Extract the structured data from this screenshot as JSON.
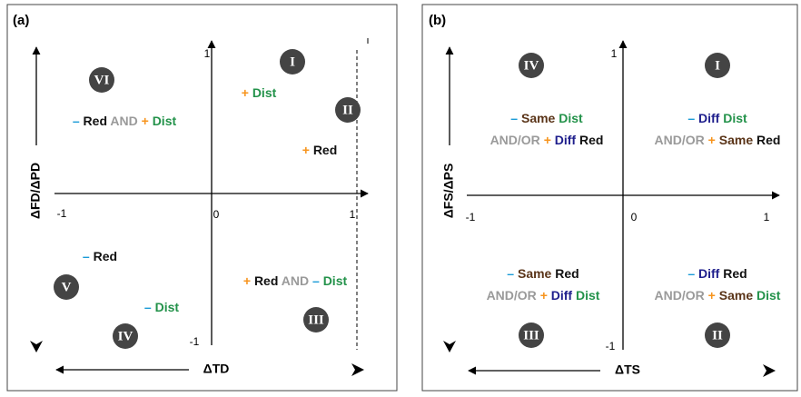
{
  "panels": [
    {
      "label": "(a)",
      "y_axis_label": "ΔFD/ΔPD",
      "x_axis_label": "ΔTD",
      "ticks": {
        "x_min": "-1",
        "x_zero": "0",
        "x_max": "1",
        "y_max": "1",
        "y_min": "-1"
      },
      "regions": [
        "VI",
        "I",
        "II",
        "V",
        "IV",
        "III"
      ],
      "annotations": [
        {
          "lines": [
            [
              {
                "text": "+",
                "color": "#f7941d"
              },
              {
                "text": "Dist",
                "color": "#23924a"
              }
            ]
          ]
        },
        {
          "lines": [
            [
              {
                "text": "–",
                "color": "#1a9bd7"
              },
              {
                "text": "Red",
                "color": "#111111"
              },
              {
                "text": "AND",
                "color": "#9a9a9a"
              },
              {
                "text": "+",
                "color": "#f7941d"
              },
              {
                "text": "Dist",
                "color": "#23924a"
              }
            ]
          ]
        },
        {
          "lines": [
            [
              {
                "text": "+",
                "color": "#f7941d"
              },
              {
                "text": "Red",
                "color": "#111111"
              }
            ]
          ]
        },
        {
          "lines": [
            [
              {
                "text": "–",
                "color": "#1a9bd7"
              },
              {
                "text": "Red",
                "color": "#111111"
              }
            ]
          ]
        },
        {
          "lines": [
            [
              {
                "text": "+",
                "color": "#f7941d"
              },
              {
                "text": "Red",
                "color": "#111111"
              },
              {
                "text": "AND",
                "color": "#9a9a9a"
              },
              {
                "text": "–",
                "color": "#1a9bd7"
              },
              {
                "text": "Dist",
                "color": "#23924a"
              }
            ]
          ]
        },
        {
          "lines": [
            [
              {
                "text": "–",
                "color": "#1a9bd7"
              },
              {
                "text": "Dist",
                "color": "#23924a"
              }
            ]
          ]
        }
      ]
    },
    {
      "label": "(b)",
      "y_axis_label": "ΔFS/ΔPS",
      "x_axis_label": "ΔTS",
      "ticks": {
        "x_min": "-1",
        "x_zero": "0",
        "x_max": "1",
        "y_max": "1",
        "y_min": "-1"
      },
      "regions": [
        "IV",
        "I",
        "III",
        "II"
      ],
      "annotations": [
        {
          "lines": [
            [
              {
                "text": "–",
                "color": "#1a9bd7"
              },
              {
                "text": "Same",
                "color": "#5a3418"
              },
              {
                "text": "Dist",
                "color": "#23924a"
              }
            ],
            [
              {
                "text": "AND/OR",
                "color": "#9a9a9a"
              },
              {
                "text": "+",
                "color": "#f7941d"
              },
              {
                "text": "Diff",
                "color": "#1e1e8c"
              },
              {
                "text": "Red",
                "color": "#111111"
              }
            ]
          ]
        },
        {
          "lines": [
            [
              {
                "text": "–",
                "color": "#1a9bd7"
              },
              {
                "text": "Diff",
                "color": "#1e1e8c"
              },
              {
                "text": "Dist",
                "color": "#23924a"
              }
            ],
            [
              {
                "text": "AND/OR",
                "color": "#9a9a9a"
              },
              {
                "text": "+",
                "color": "#f7941d"
              },
              {
                "text": "Same",
                "color": "#5a3418"
              },
              {
                "text": "Red",
                "color": "#111111"
              }
            ]
          ]
        },
        {
          "lines": [
            [
              {
                "text": "–",
                "color": "#1a9bd7"
              },
              {
                "text": "Same",
                "color": "#5a3418"
              },
              {
                "text": "Red",
                "color": "#111111"
              }
            ],
            [
              {
                "text": "AND/OR",
                "color": "#9a9a9a"
              },
              {
                "text": "+",
                "color": "#f7941d"
              },
              {
                "text": "Diff",
                "color": "#1e1e8c"
              },
              {
                "text": "Dist",
                "color": "#23924a"
              }
            ]
          ]
        },
        {
          "lines": [
            [
              {
                "text": "–",
                "color": "#1a9bd7"
              },
              {
                "text": "Diff",
                "color": "#1e1e8c"
              },
              {
                "text": "Red",
                "color": "#111111"
              }
            ],
            [
              {
                "text": "AND/OR",
                "color": "#9a9a9a"
              },
              {
                "text": "+",
                "color": "#f7941d"
              },
              {
                "text": "Same",
                "color": "#5a3418"
              },
              {
                "text": "Dist",
                "color": "#23924a"
              }
            ]
          ]
        }
      ]
    }
  ]
}
